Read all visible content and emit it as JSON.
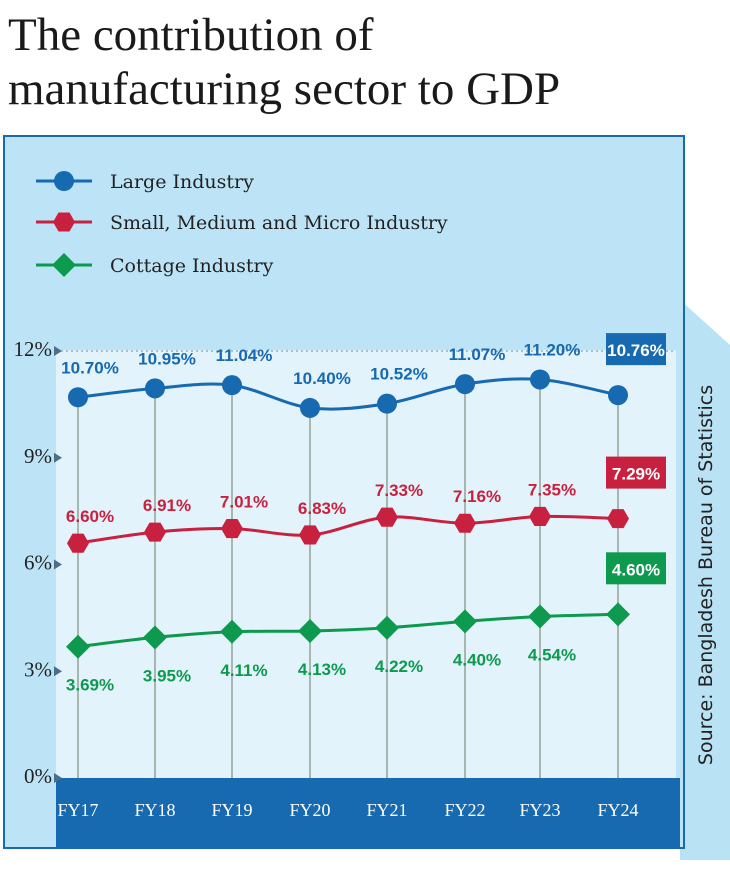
{
  "title_line1": "The contribution of",
  "title_line2": "manufacturing sector to GDP",
  "source": "Source: Bangladesh Bureau of Statistics",
  "chart_data": {
    "type": "line",
    "title": "The contribution of manufacturing sector to GDP",
    "categories": [
      "FY17",
      "FY18",
      "FY19",
      "FY20",
      "FY21",
      "FY22",
      "FY23",
      "FY24"
    ],
    "ylim": [
      0,
      12
    ],
    "yticks": [
      0,
      3,
      6,
      9,
      12
    ],
    "ytick_labels": [
      "0%",
      "3%",
      "6%",
      "9%",
      "12%"
    ],
    "series": [
      {
        "name": "Large Industry",
        "color": "#1769b0",
        "marker": "circle",
        "values": [
          10.7,
          10.95,
          11.04,
          10.4,
          10.52,
          11.07,
          11.2,
          10.76
        ],
        "labels": [
          "10.70%",
          "10.95%",
          "11.04%",
          "10.40%",
          "10.52%",
          "11.07%",
          "11.20%",
          "10.76%"
        ]
      },
      {
        "name": "Small, Medium and Micro Industry",
        "color": "#c8213f",
        "marker": "hexagon",
        "values": [
          6.6,
          6.91,
          7.01,
          6.83,
          7.33,
          7.16,
          7.35,
          7.29
        ],
        "labels": [
          "6.60%",
          "6.91%",
          "7.01%",
          "6.83%",
          "7.33%",
          "7.16%",
          "7.35%",
          "7.29%"
        ]
      },
      {
        "name": "Cottage Industry",
        "color": "#0d9a4e",
        "marker": "diamond",
        "values": [
          3.69,
          3.95,
          4.11,
          4.13,
          4.22,
          4.4,
          4.54,
          4.6
        ],
        "labels": [
          "3.69%",
          "3.95%",
          "4.11%",
          "4.13%",
          "4.22%",
          "4.40%",
          "4.54%",
          "4.60%"
        ]
      }
    ],
    "legend_position": "top-left"
  }
}
